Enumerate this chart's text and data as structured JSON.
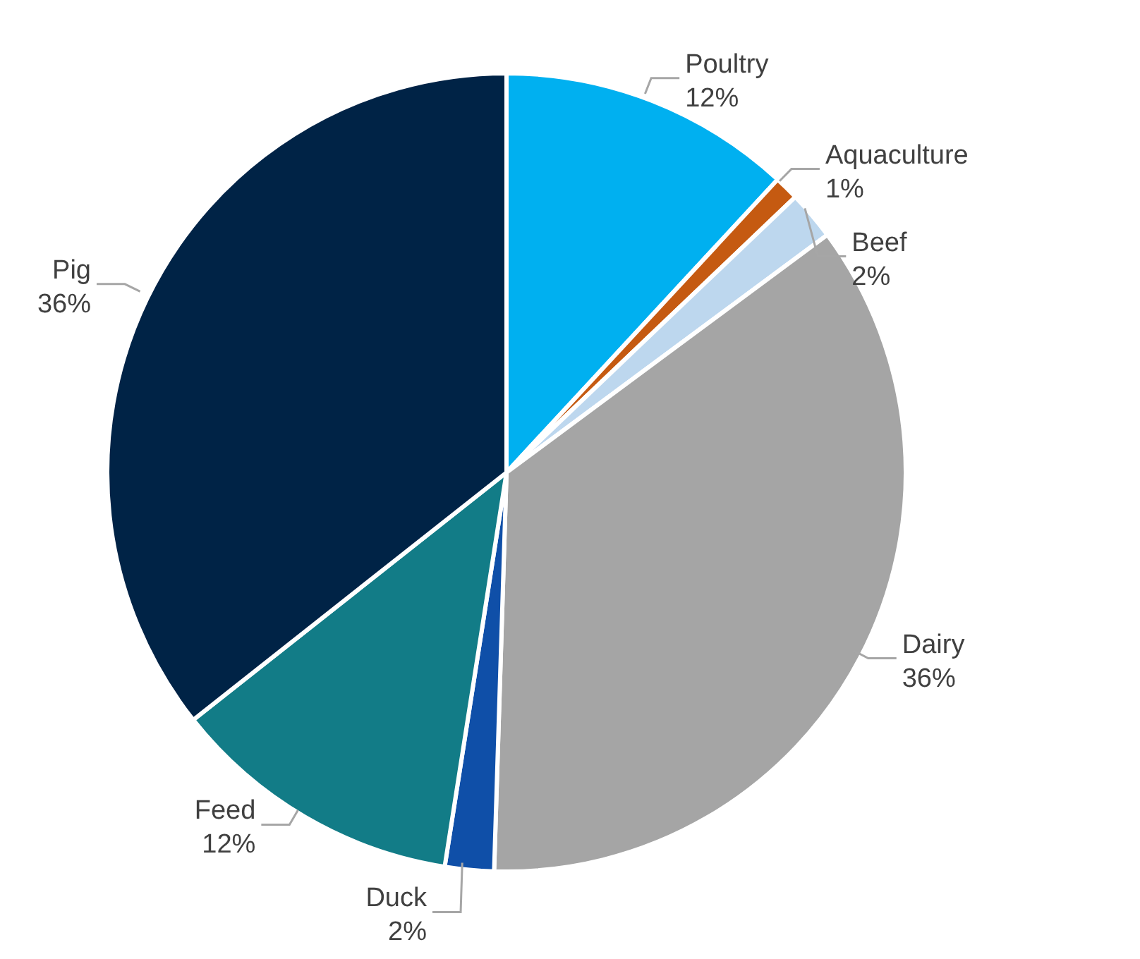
{
  "chart_data": {
    "type": "pie",
    "categories": [
      "Poultry",
      "Aquaculture",
      "Beef",
      "Dairy",
      "Duck",
      "Feed",
      "Pig"
    ],
    "values": [
      12,
      1,
      2,
      36,
      2,
      12,
      36
    ],
    "value_labels": [
      "12%",
      "1%",
      "2%",
      "36%",
      "2%",
      "12%",
      "36%"
    ],
    "colors": [
      "#00b0f0",
      "#c55a11",
      "#bdd7ee",
      "#a5a5a5",
      "#0f4fa8",
      "#127c87",
      "#002346"
    ],
    "legend": false
  }
}
